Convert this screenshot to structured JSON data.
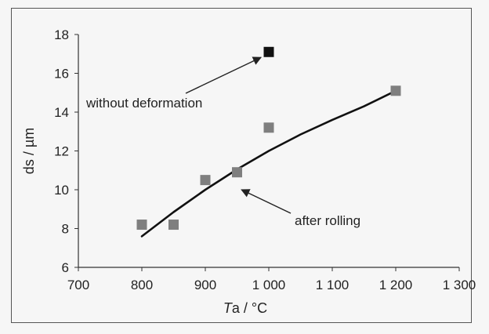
{
  "chart_data": {
    "type": "scatter",
    "xlabel": {
      "italic": "T",
      "rest": "a / °C"
    },
    "ylabel": "ds / µm",
    "xlim": [
      700,
      1300
    ],
    "ylim": [
      6,
      18
    ],
    "x_ticks": [
      700,
      800,
      900,
      1000,
      1100,
      1200,
      1300
    ],
    "x_tick_labels": [
      "700",
      "800",
      "900",
      "1 000",
      "1 100",
      "1 200",
      "1 300"
    ],
    "y_ticks": [
      6,
      8,
      10,
      12,
      14,
      16,
      18
    ],
    "y_tick_labels": [
      "6",
      "8",
      "10",
      "12",
      "14",
      "16",
      "18"
    ],
    "grid": false,
    "legend": "none",
    "series": [
      {
        "label": "after rolling",
        "color": "#7f7f7f",
        "marker": "square",
        "x": [
          800,
          850,
          900,
          950,
          1000,
          1200
        ],
        "y": [
          8.2,
          8.2,
          10.5,
          10.9,
          13.2,
          15.1
        ]
      },
      {
        "label": "without deformation",
        "color": "#111111",
        "marker": "square",
        "x": [
          1000
        ],
        "y": [
          17.1
        ]
      }
    ],
    "trendline": {
      "color": "#111111",
      "x": [
        800,
        850,
        900,
        950,
        1000,
        1050,
        1100,
        1150,
        1200
      ],
      "y": [
        7.6,
        8.85,
        10.0,
        11.05,
        12.0,
        12.85,
        13.6,
        14.3,
        15.1
      ]
    },
    "annotations": [
      {
        "text": "without deformation",
        "series": 1
      },
      {
        "text": "after rolling",
        "series": 0
      }
    ]
  }
}
